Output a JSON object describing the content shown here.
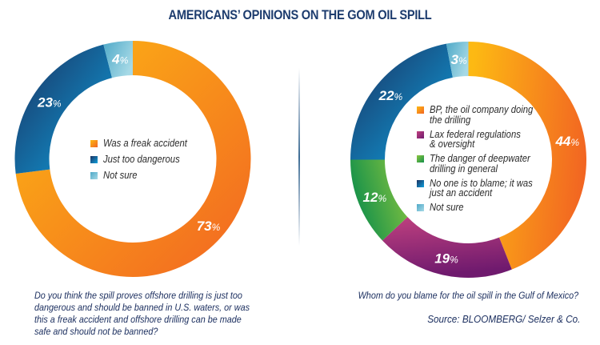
{
  "title": "AMERICANS’ OPINIONS ON THE GOM OIL SPILL",
  "chart_data": [
    {
      "type": "pie",
      "variant": "donut",
      "title": "Do you think the spill proves offshore drilling is just too dangerous and should be banned in U.S. waters, or was this a freak accident and offshore drilling can be made safe and should not be banned?",
      "categories": [
        "Was a freak accident",
        "Just too dangerous",
        "Not sure"
      ],
      "values": [
        73,
        23,
        4
      ],
      "unit": "%",
      "labels": [
        "73",
        "23",
        "4"
      ],
      "colors": [
        {
          "from": "#fdb913",
          "to": "#f26522"
        },
        {
          "from": "#1b3160",
          "to": "#0ea0dd"
        },
        {
          "from": "#4fa9c8",
          "to": "#a6d9e6"
        }
      ],
      "start": "top",
      "direction": "clockwise",
      "legend": "center"
    },
    {
      "type": "pie",
      "variant": "donut",
      "title": "Whom do you blame for the oil spill in the Gulf of Mexico?",
      "categories": [
        "BP, the oil company doing the drilling",
        "Lax federal regulations & oversight",
        "The danger of deepwater drilling in general",
        "No one is to blame; it was just an accident",
        "Not sure"
      ],
      "values": [
        44,
        19,
        12,
        22,
        3
      ],
      "unit": "%",
      "labels": [
        "44",
        "19",
        "12",
        "22",
        "3"
      ],
      "colors": [
        {
          "from": "#fdb913",
          "to": "#f26522"
        },
        {
          "from": "#c0417f",
          "to": "#6f1a6e"
        },
        {
          "from": "#8dc63f",
          "to": "#13904a"
        },
        {
          "from": "#1b3160",
          "to": "#0ea0dd"
        },
        {
          "from": "#4fa9c8",
          "to": "#a6d9e6"
        }
      ],
      "start": "top",
      "direction": "clockwise",
      "legend": "center"
    }
  ],
  "legend1": {
    "items": [
      {
        "lines": [
          "Was a freak accident"
        ]
      },
      {
        "lines": [
          "Just too dangerous"
        ]
      },
      {
        "lines": [
          "Not sure"
        ]
      }
    ]
  },
  "legend2": {
    "items": [
      {
        "lines": [
          "BP, the oil company doing",
          "the drilling"
        ]
      },
      {
        "lines": [
          "Lax federal regulations",
          "& oversight"
        ]
      },
      {
        "lines": [
          "The danger of deepwater",
          "drilling in general"
        ]
      },
      {
        "lines": [
          "No one is to blame; it was",
          "just an accident"
        ]
      },
      {
        "lines": [
          "Not sure"
        ]
      }
    ]
  },
  "question1": {
    "lines": [
      "Do you think the spill proves offshore drilling is just too",
      "dangerous and should be banned in U.S. waters, or was",
      "this a freak accident and offshore drilling can be made",
      "safe and should not be banned?"
    ]
  },
  "question2": "Whom do you blame for the oil spill in the Gulf of Mexico?",
  "source": "Source: BLOOMBERG/ Selzer & Co."
}
